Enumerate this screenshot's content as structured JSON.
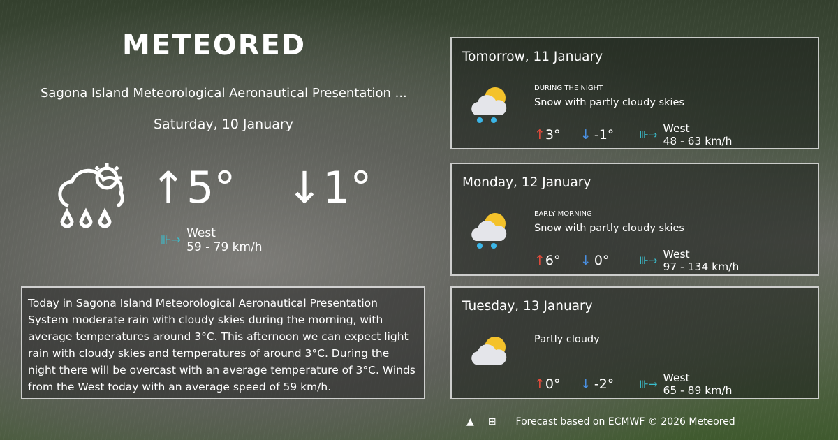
{
  "logo": "METEORED",
  "location": "Sagona Island Meteorological Aeronautical Presentation ...",
  "today": {
    "date": "Saturday, 10 January",
    "icon": "rain-cloud-sun-icon",
    "max": "↑5°",
    "min": "↓1°",
    "wind_dir": "West",
    "wind_speed": "59 - 79 km/h",
    "description": "Today in Sagona Island Meteorological Aeronautical Presentation System moderate rain with cloudy skies during the morning, with average temperatures around 3°C. This afternoon we can expect light rain with cloudy skies and temperatures of around 3°C. During the night there will be overcast with an average temperature of 3°C. Winds from the West today with an average speed of 59 km/h."
  },
  "forecast": [
    {
      "title": "Tomorrow, 11 January",
      "period": "DURING THE NIGHT",
      "condition": "Snow with partly cloudy skies",
      "max": "3°",
      "min": "-1°",
      "wind_dir": "West",
      "wind_speed": "48 - 63 km/h",
      "icon": "snow-partly-cloudy-icon"
    },
    {
      "title": "Monday, 12 January",
      "period": "EARLY MORNING",
      "condition": "Snow with partly cloudy skies",
      "max": "6°",
      "min": "0°",
      "wind_dir": "West",
      "wind_speed": "97 - 134 km/h",
      "icon": "snow-partly-cloudy-icon"
    },
    {
      "title": "Tuesday, 13 January",
      "period": "",
      "condition": "Partly cloudy",
      "max": "0°",
      "min": "-2°",
      "wind_dir": "West",
      "wind_speed": "65 - 89 km/h",
      "icon": "partly-cloudy-icon"
    }
  ],
  "footer": {
    "text": "Forecast based on ECMWF © 2026 Meteored",
    "icons": [
      "android-icon",
      "apple-icon",
      "windows-icon"
    ]
  },
  "colors": {
    "max": "#e74c3c",
    "min": "#4a90e2",
    "wind": "#3bc0d0"
  }
}
